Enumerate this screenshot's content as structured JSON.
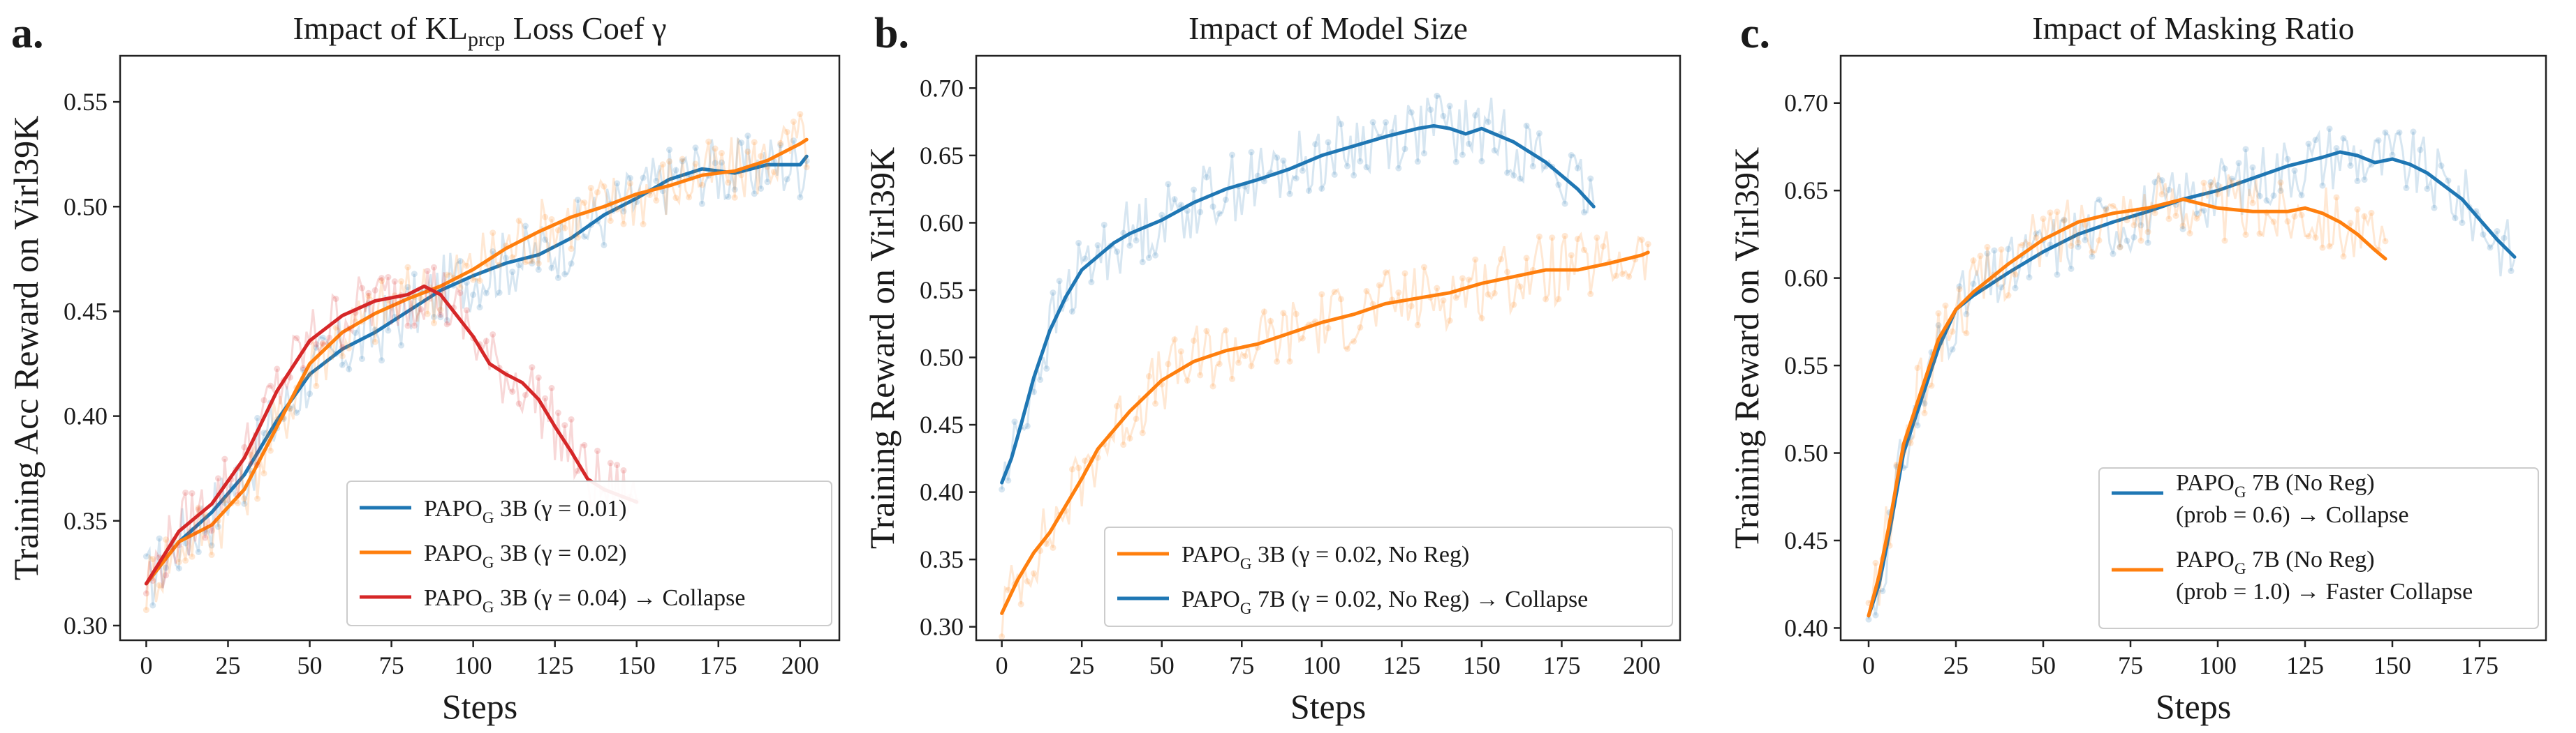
{
  "chart_data": [
    {
      "type": "line",
      "panel_letter": "a.",
      "title": "Impact of KL_prcp Loss Coef γ",
      "xlabel": "Steps",
      "ylabel": "Training Acc Reward on Virl39K",
      "xlim": [
        -8,
        212
      ],
      "ylim": [
        0.293,
        0.572
      ],
      "xticks": [
        0,
        25,
        50,
        75,
        100,
        125,
        150,
        175,
        200
      ],
      "yticks": [
        0.3,
        0.35,
        0.4,
        0.45,
        0.5,
        0.55
      ],
      "legend_position": "lower right",
      "series": [
        {
          "name": "PAPO_G 3B (γ = 0.01)",
          "color": "#1f77b4",
          "x": [
            0,
            10,
            20,
            30,
            40,
            50,
            60,
            70,
            80,
            90,
            100,
            110,
            120,
            130,
            140,
            150,
            160,
            170,
            180,
            190,
            200,
            202
          ],
          "y": [
            0.32,
            0.34,
            0.354,
            0.372,
            0.398,
            0.42,
            0.432,
            0.44,
            0.45,
            0.46,
            0.467,
            0.473,
            0.477,
            0.485,
            0.496,
            0.504,
            0.513,
            0.518,
            0.516,
            0.52,
            0.52,
            0.524
          ]
        },
        {
          "name": "PAPO_G 3B (γ = 0.02)",
          "color": "#ff7f0e",
          "x": [
            0,
            10,
            20,
            30,
            40,
            50,
            60,
            70,
            80,
            90,
            100,
            110,
            120,
            130,
            140,
            150,
            160,
            170,
            180,
            190,
            200,
            202
          ],
          "y": [
            0.32,
            0.34,
            0.348,
            0.365,
            0.395,
            0.425,
            0.44,
            0.449,
            0.456,
            0.462,
            0.47,
            0.48,
            0.488,
            0.495,
            0.5,
            0.506,
            0.51,
            0.515,
            0.517,
            0.522,
            0.53,
            0.532
          ]
        },
        {
          "name": "PAPO_G 3B (γ = 0.04) → Collapse",
          "color": "#d62728",
          "x": [
            0,
            10,
            20,
            30,
            40,
            50,
            60,
            70,
            80,
            85,
            90,
            95,
            100,
            105,
            110,
            115,
            120,
            125,
            130,
            135,
            140,
            145,
            150
          ],
          "y": [
            0.32,
            0.345,
            0.358,
            0.38,
            0.412,
            0.436,
            0.448,
            0.455,
            0.458,
            0.462,
            0.458,
            0.448,
            0.438,
            0.425,
            0.42,
            0.416,
            0.408,
            0.395,
            0.383,
            0.37,
            0.365,
            0.362,
            0.359
          ]
        }
      ]
    },
    {
      "type": "line",
      "panel_letter": "b.",
      "title": "Impact of Model Size",
      "xlabel": "Steps",
      "ylabel": "Training Reward on Virl39K",
      "xlim": [
        -8,
        212
      ],
      "ylim": [
        0.29,
        0.724
      ],
      "xticks": [
        0,
        25,
        50,
        75,
        100,
        125,
        150,
        175,
        200
      ],
      "yticks": [
        0.3,
        0.35,
        0.4,
        0.45,
        0.5,
        0.55,
        0.6,
        0.65,
        0.7
      ],
      "legend_position": "lower right",
      "series": [
        {
          "name": "PAPO_G 3B (γ = 0.02, No Reg)",
          "color": "#ff7f0e",
          "x": [
            0,
            5,
            10,
            15,
            20,
            25,
            30,
            40,
            50,
            60,
            70,
            80,
            90,
            100,
            110,
            120,
            130,
            140,
            150,
            160,
            170,
            180,
            190,
            200,
            202
          ],
          "y": [
            0.31,
            0.335,
            0.355,
            0.37,
            0.39,
            0.41,
            0.432,
            0.46,
            0.483,
            0.497,
            0.505,
            0.51,
            0.518,
            0.526,
            0.532,
            0.54,
            0.544,
            0.548,
            0.555,
            0.56,
            0.565,
            0.565,
            0.57,
            0.576,
            0.578
          ]
        },
        {
          "name": "PAPO_G 7B (γ = 0.02, No Reg) → Collapse",
          "color": "#1f77b4",
          "x": [
            0,
            3,
            6,
            10,
            15,
            20,
            25,
            30,
            35,
            40,
            50,
            60,
            70,
            80,
            90,
            100,
            110,
            120,
            130,
            135,
            140,
            145,
            150,
            160,
            170,
            180,
            185
          ],
          "y": [
            0.407,
            0.425,
            0.45,
            0.485,
            0.52,
            0.545,
            0.565,
            0.575,
            0.585,
            0.592,
            0.602,
            0.615,
            0.625,
            0.632,
            0.64,
            0.65,
            0.657,
            0.664,
            0.67,
            0.672,
            0.67,
            0.666,
            0.67,
            0.66,
            0.645,
            0.625,
            0.612
          ]
        }
      ]
    },
    {
      "type": "line",
      "panel_letter": "c.",
      "title": "Impact of Masking Ratio",
      "xlabel": "Steps",
      "ylabel": "Training Reward on Virl39K",
      "xlim": [
        -8,
        194
      ],
      "ylim": [
        0.393,
        0.727
      ],
      "xticks": [
        0,
        25,
        50,
        75,
        100,
        125,
        150,
        175
      ],
      "yticks": [
        0.4,
        0.45,
        0.5,
        0.55,
        0.6,
        0.65,
        0.7
      ],
      "legend_position": "lower right",
      "series": [
        {
          "name": "PAPO_G 7B (No Reg) (prob = 0.6) → Collapse",
          "color": "#1f77b4",
          "x": [
            0,
            3,
            6,
            10,
            15,
            20,
            25,
            30,
            40,
            50,
            60,
            70,
            80,
            90,
            100,
            110,
            120,
            130,
            135,
            140,
            145,
            150,
            155,
            160,
            170,
            180,
            185
          ],
          "y": [
            0.407,
            0.425,
            0.455,
            0.5,
            0.53,
            0.56,
            0.582,
            0.59,
            0.603,
            0.615,
            0.625,
            0.632,
            0.638,
            0.645,
            0.65,
            0.657,
            0.664,
            0.669,
            0.672,
            0.67,
            0.666,
            0.668,
            0.665,
            0.66,
            0.645,
            0.622,
            0.612
          ]
        },
        {
          "name": "PAPO_G 7B (No Reg) (prob = 1.0) → Faster Collapse",
          "color": "#ff7f0e",
          "x": [
            0,
            3,
            6,
            10,
            15,
            20,
            25,
            30,
            40,
            50,
            60,
            70,
            80,
            90,
            100,
            110,
            120,
            125,
            130,
            135,
            140,
            145,
            148
          ],
          "y": [
            0.407,
            0.43,
            0.46,
            0.505,
            0.535,
            0.565,
            0.582,
            0.592,
            0.608,
            0.622,
            0.632,
            0.637,
            0.64,
            0.645,
            0.64,
            0.638,
            0.638,
            0.64,
            0.637,
            0.632,
            0.625,
            0.616,
            0.611
          ]
        }
      ]
    }
  ]
}
